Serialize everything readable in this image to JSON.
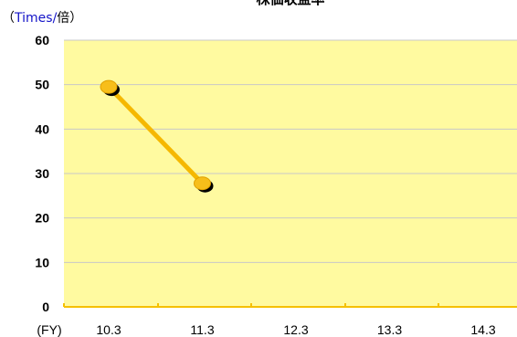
{
  "chart_data": {
    "type": "line",
    "title": "株価収益率",
    "y_unit_label": {
      "open": "（",
      "english": "Times",
      "separator": "/",
      "japanese": "倍",
      "close": "）"
    },
    "x_unit_label": "(FY)",
    "categories": [
      "10.3",
      "11.3",
      "12.3",
      "13.3",
      "14.3"
    ],
    "series": [
      {
        "values": [
          49.5,
          27.8,
          null,
          null,
          null
        ]
      }
    ],
    "ylim": [
      0,
      60
    ],
    "yticks": [
      0,
      10,
      20,
      30,
      40,
      50,
      60
    ],
    "grid": true,
    "colors": {
      "plot_background": "#FFFAA0",
      "gridline": "#C8C8C8",
      "axis": "#F5C000",
      "line": "#F5B800",
      "marker": "#F7BE1A",
      "marker_shadow": "#000000",
      "unit_english": "#1414C8"
    }
  }
}
